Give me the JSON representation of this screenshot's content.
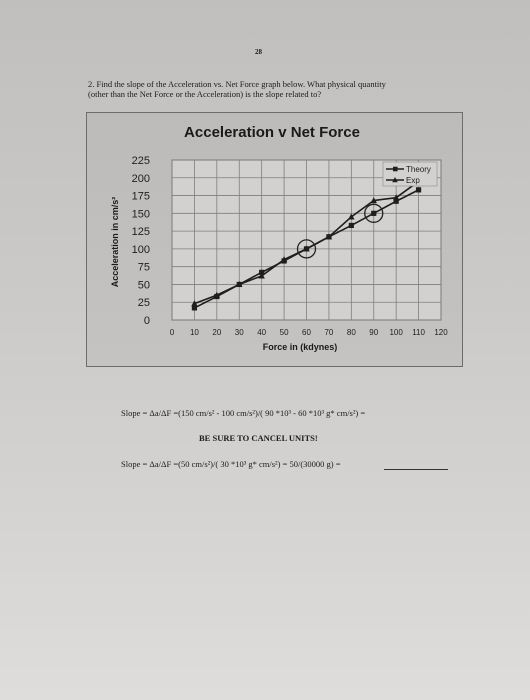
{
  "page": {
    "number": "28",
    "question_line1": "2.  Find the slope of the Acceleration vs. Net Force graph below.  What physical quantity",
    "question_line2": "(other than the Net Force or the Acceleration) is the slope related to?",
    "slope_eq1": "Slope = Δa/ΔF =(150 cm/s² - 100 cm/s²)/( 90 *10³ - 60 *10³ g* cm/s²) =",
    "note": "BE SURE TO CANCEL UNITS!",
    "slope_eq2": "Slope = Δa/ΔF =(50 cm/s²)/( 30 *10³ g* cm/s²) = 50/(30000 g) = "
  },
  "chart_data": {
    "type": "line",
    "title": "Acceleration v Net Force",
    "xlabel": "Force in (kdynes)",
    "ylabel": "Acceleration in cm/s²",
    "xlim": [
      0,
      120
    ],
    "ylim": [
      0,
      225
    ],
    "xticks": [
      0,
      10,
      20,
      30,
      40,
      50,
      60,
      70,
      80,
      90,
      100,
      110,
      120
    ],
    "yticks": [
      0,
      25,
      50,
      75,
      100,
      125,
      150,
      175,
      200,
      225
    ],
    "grid": true,
    "legend_position": "top-right",
    "series": [
      {
        "name": "Theory",
        "marker": "square",
        "x": [
          10,
          20,
          30,
          40,
          50,
          60,
          70,
          80,
          90,
          100,
          110
        ],
        "y": [
          17,
          33,
          50,
          67,
          83,
          100,
          117,
          133,
          150,
          167,
          183
        ]
      },
      {
        "name": "Exp",
        "marker": "triangle",
        "x": [
          10,
          20,
          30,
          40,
          50,
          60,
          70,
          80,
          90,
          100,
          110
        ],
        "y": [
          23,
          35,
          50,
          62,
          85,
          100,
          117,
          145,
          168,
          172,
          195
        ]
      }
    ],
    "annotations": [
      {
        "type": "circle",
        "x": 60,
        "y": 100
      },
      {
        "type": "circle",
        "x": 90,
        "y": 150
      }
    ],
    "colors": {
      "plot_bg": "#d3d1d0",
      "grid": "#807e7d",
      "line": "#1e1e1e"
    }
  }
}
